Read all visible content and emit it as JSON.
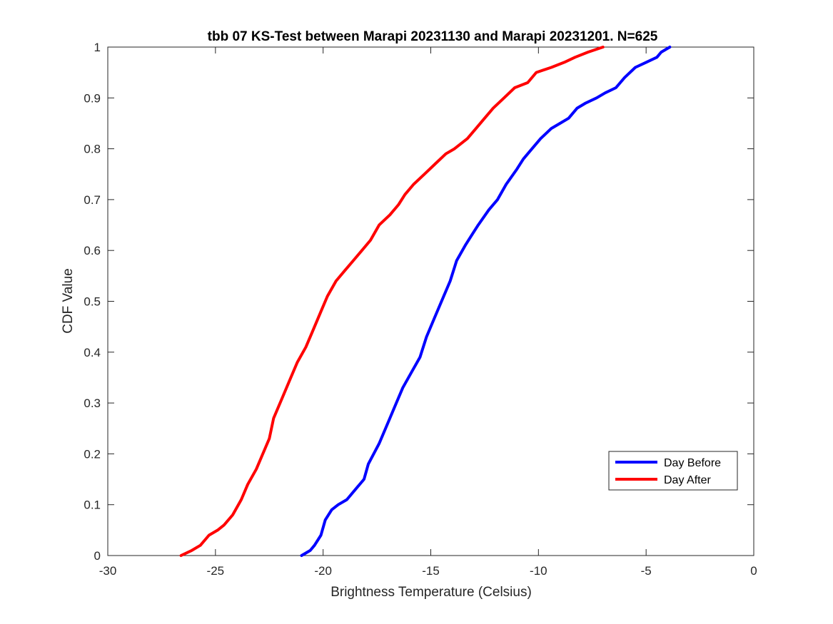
{
  "chart_data": {
    "type": "line",
    "title": "tbb 07 KS-Test between Marapi 20231130 and Marapi 20231201. N=625",
    "xlabel": "Brightness Temperature (Celsius)",
    "ylabel": "CDF Value",
    "xlim": [
      -30,
      0
    ],
    "ylim": [
      0,
      1
    ],
    "xticks": [
      -30,
      -25,
      -20,
      -15,
      -10,
      -5,
      0
    ],
    "yticks": [
      0,
      0.1,
      0.2,
      0.3,
      0.4,
      0.5,
      0.6,
      0.7,
      0.8,
      0.9,
      1
    ],
    "grid": false,
    "legend_location": "bottom-right",
    "series": [
      {
        "name": "Day Before",
        "color": "#0000ff",
        "x": [
          -21.0,
          -20.6,
          -20.4,
          -20.1,
          -19.9,
          -19.6,
          -19.3,
          -18.9,
          -18.5,
          -18.1,
          -17.9,
          -17.4,
          -16.9,
          -16.6,
          -16.3,
          -15.9,
          -15.5,
          -15.2,
          -14.8,
          -14.4,
          -14.1,
          -13.8,
          -13.4,
          -13.1,
          -12.8,
          -12.3,
          -11.9,
          -11.5,
          -11.0,
          -10.7,
          -10.3,
          -9.9,
          -9.4,
          -9.0,
          -8.6,
          -8.2,
          -7.8,
          -7.3,
          -6.9,
          -6.4,
          -6.0,
          -5.5,
          -5.0,
          -4.5,
          -4.3,
          -3.9
        ],
        "y": [
          0.0,
          0.01,
          0.02,
          0.04,
          0.07,
          0.09,
          0.1,
          0.11,
          0.13,
          0.15,
          0.18,
          0.22,
          0.27,
          0.3,
          0.33,
          0.36,
          0.39,
          0.43,
          0.47,
          0.51,
          0.54,
          0.58,
          0.61,
          0.63,
          0.65,
          0.68,
          0.7,
          0.73,
          0.76,
          0.78,
          0.8,
          0.82,
          0.84,
          0.85,
          0.86,
          0.88,
          0.89,
          0.9,
          0.91,
          0.92,
          0.94,
          0.96,
          0.97,
          0.98,
          0.99,
          1.0
        ]
      },
      {
        "name": "Day After",
        "color": "#ff0000",
        "x": [
          -26.6,
          -26.1,
          -25.7,
          -25.3,
          -24.9,
          -24.6,
          -24.2,
          -23.8,
          -23.5,
          -23.1,
          -22.8,
          -22.5,
          -22.3,
          -21.9,
          -21.5,
          -21.2,
          -20.8,
          -20.5,
          -20.1,
          -19.8,
          -19.4,
          -19.0,
          -18.6,
          -18.2,
          -17.8,
          -17.4,
          -16.9,
          -16.5,
          -16.2,
          -15.8,
          -15.3,
          -14.8,
          -14.3,
          -13.9,
          -13.3,
          -12.9,
          -12.5,
          -12.1,
          -11.6,
          -11.1,
          -10.5,
          -10.1,
          -9.4,
          -8.8,
          -8.3,
          -7.7,
          -7.0
        ],
        "y": [
          0.0,
          0.01,
          0.02,
          0.04,
          0.05,
          0.06,
          0.08,
          0.11,
          0.14,
          0.17,
          0.2,
          0.23,
          0.27,
          0.31,
          0.35,
          0.38,
          0.41,
          0.44,
          0.48,
          0.51,
          0.54,
          0.56,
          0.58,
          0.6,
          0.62,
          0.65,
          0.67,
          0.69,
          0.71,
          0.73,
          0.75,
          0.77,
          0.79,
          0.8,
          0.82,
          0.84,
          0.86,
          0.88,
          0.9,
          0.92,
          0.93,
          0.95,
          0.96,
          0.97,
          0.98,
          0.99,
          1.0
        ]
      }
    ]
  }
}
